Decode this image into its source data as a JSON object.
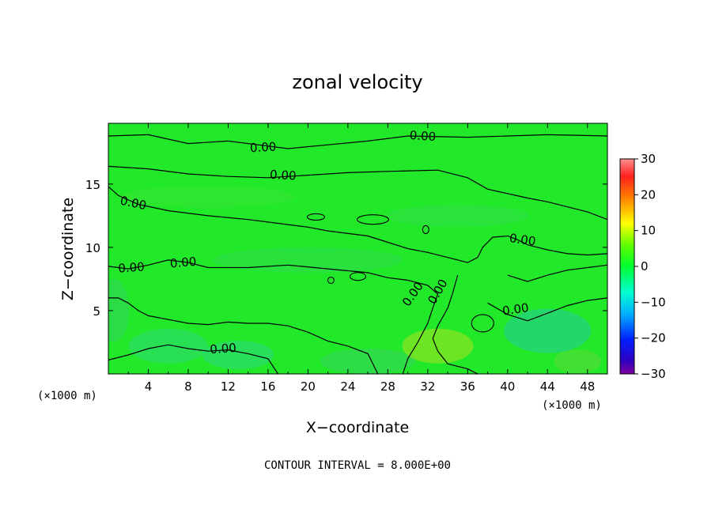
{
  "chart_data": {
    "type": "heatmap",
    "title": "zonal velocity",
    "xlabel": "X−coordinate",
    "ylabel": "Z−coordinate",
    "x_unit": "(×1000 m)",
    "y_unit": "(×1000 m)",
    "xlim": [
      0,
      50
    ],
    "ylim": [
      0,
      19.8
    ],
    "x_ticks": [
      4,
      8,
      12,
      16,
      20,
      24,
      28,
      32,
      36,
      40,
      44,
      48
    ],
    "y_ticks": [
      5,
      10,
      15
    ],
    "colorbar": {
      "min": -30,
      "max": 30,
      "ticks": [
        30,
        20,
        10,
        0,
        -10,
        -20,
        -30
      ],
      "tick_labels": [
        "30",
        "20",
        "10",
        "0",
        "−10",
        "−20",
        "−30"
      ]
    },
    "contour_level": 0.0,
    "contour_label": "0.00",
    "contour_interval_label": "CONTOUR INTERVAL = 8.000E+00",
    "contours": [
      {
        "name": "upper-band-top",
        "points": [
          [
            0,
            18.8
          ],
          [
            4,
            18.9
          ],
          [
            8,
            18.2
          ],
          [
            12,
            18.4
          ],
          [
            16,
            18.0
          ],
          [
            18,
            17.8
          ],
          [
            22,
            18.1
          ],
          [
            26,
            18.4
          ],
          [
            30,
            18.8
          ],
          [
            36,
            18.7
          ],
          [
            44,
            18.9
          ],
          [
            50,
            18.8
          ]
        ]
      },
      {
        "name": "upper-band-bottom",
        "points": [
          [
            0,
            16.4
          ],
          [
            4,
            16.2
          ],
          [
            8,
            15.8
          ],
          [
            12,
            15.6
          ],
          [
            16,
            15.5
          ],
          [
            20,
            15.7
          ],
          [
            24,
            15.9
          ],
          [
            28,
            16.0
          ],
          [
            33,
            16.1
          ],
          [
            36,
            15.5
          ],
          [
            38,
            14.6
          ],
          [
            42,
            13.9
          ],
          [
            44,
            13.6
          ],
          [
            46,
            13.2
          ],
          [
            48,
            12.8
          ],
          [
            50,
            12.2
          ]
        ]
      },
      {
        "name": "mid-band-top",
        "points": [
          [
            0,
            14.8
          ],
          [
            1,
            14.1
          ],
          [
            3,
            13.4
          ],
          [
            6,
            12.9
          ],
          [
            10,
            12.5
          ],
          [
            14,
            12.2
          ],
          [
            18,
            11.8
          ],
          [
            20,
            11.6
          ],
          [
            22,
            11.3
          ],
          [
            26,
            10.9
          ],
          [
            28,
            10.4
          ],
          [
            30,
            9.9
          ],
          [
            32,
            9.6
          ],
          [
            34,
            9.2
          ],
          [
            36,
            8.8
          ],
          [
            37,
            9.2
          ],
          [
            37.5,
            10.0
          ],
          [
            38.5,
            10.8
          ],
          [
            40,
            10.9
          ],
          [
            41,
            10.6
          ],
          [
            42,
            10.2
          ],
          [
            44,
            9.8
          ],
          [
            46,
            9.5
          ],
          [
            48,
            9.4
          ],
          [
            50,
            9.5
          ]
        ]
      },
      {
        "name": "mid-band-bottom",
        "points": [
          [
            0,
            8.5
          ],
          [
            2,
            8.3
          ],
          [
            4,
            8.6
          ],
          [
            6,
            9.0
          ],
          [
            8,
            8.8
          ],
          [
            10,
            8.4
          ],
          [
            14,
            8.4
          ],
          [
            18,
            8.6
          ],
          [
            22,
            8.3
          ],
          [
            26,
            8.0
          ],
          [
            28,
            7.6
          ],
          [
            30,
            7.4
          ],
          [
            32,
            7.0
          ],
          [
            33,
            6.3
          ],
          [
            32.5,
            5.2
          ],
          [
            32,
            4.0
          ],
          [
            31,
            2.5
          ],
          [
            30,
            1.2
          ],
          [
            29.5,
            0
          ]
        ]
      },
      {
        "name": "left-lower-band",
        "points": [
          [
            0,
            6.0
          ],
          [
            1,
            6.0
          ],
          [
            2,
            5.6
          ],
          [
            3,
            5.0
          ],
          [
            4,
            4.6
          ],
          [
            6,
            4.3
          ],
          [
            8,
            4.0
          ],
          [
            10,
            3.9
          ],
          [
            12,
            4.1
          ],
          [
            14,
            4.0
          ],
          [
            16,
            4.0
          ],
          [
            18,
            3.8
          ],
          [
            20,
            3.3
          ],
          [
            22,
            2.6
          ],
          [
            24,
            2.2
          ],
          [
            26,
            1.6
          ],
          [
            27,
            0
          ]
        ]
      },
      {
        "name": "left-bottom",
        "points": [
          [
            0,
            1.1
          ],
          [
            2,
            1.5
          ],
          [
            4,
            2.0
          ],
          [
            6,
            2.3
          ],
          [
            8,
            2.0
          ],
          [
            10,
            1.8
          ],
          [
            12,
            1.9
          ],
          [
            14,
            1.6
          ],
          [
            16,
            1.2
          ],
          [
            17,
            0
          ]
        ]
      },
      {
        "name": "centre-diagonal",
        "points": [
          [
            35,
            7.8
          ],
          [
            34.5,
            6.4
          ],
          [
            34,
            5.2
          ],
          [
            33,
            3.8
          ],
          [
            32.5,
            2.8
          ],
          [
            33,
            1.8
          ],
          [
            34,
            0.8
          ],
          [
            35,
            0.6
          ],
          [
            36,
            0.4
          ],
          [
            37,
            0
          ]
        ]
      },
      {
        "name": "right-lower",
        "points": [
          [
            38,
            5.6
          ],
          [
            40,
            4.7
          ],
          [
            42,
            4.2
          ],
          [
            44,
            4.8
          ],
          [
            46,
            5.4
          ],
          [
            48,
            5.8
          ],
          [
            50,
            6.0
          ]
        ]
      },
      {
        "name": "right-upper",
        "points": [
          [
            40,
            7.8
          ],
          [
            42,
            7.3
          ],
          [
            44,
            7.8
          ],
          [
            46,
            8.2
          ],
          [
            48,
            8.4
          ],
          [
            50,
            8.6
          ]
        ]
      }
    ]
  },
  "footer": {
    "contour_interval": "CONTOUR INTERVAL = 8.000E+00"
  }
}
